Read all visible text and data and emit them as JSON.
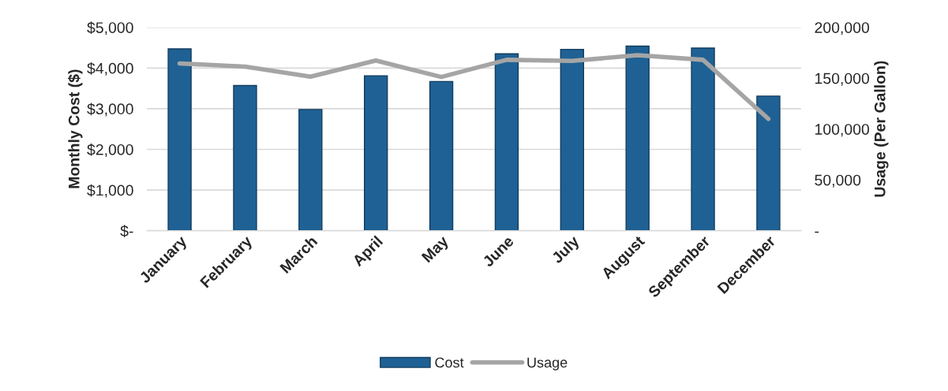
{
  "chart_data": {
    "type": "bar",
    "ylabel": "Monthly Cost ($)",
    "y2label": "Usage (Per Gallon)",
    "categories": [
      "January",
      "February",
      "March",
      "April",
      "May",
      "June",
      "July",
      "August",
      "September",
      "December"
    ],
    "series": [
      {
        "name": "Cost",
        "color": "#1f6194",
        "values": [
          4470,
          3570,
          2980,
          3810,
          3670,
          4350,
          4460,
          4540,
          4490,
          3310
        ]
      },
      {
        "name": "Usage",
        "type": "line",
        "axis": "y2",
        "color": "#a5a5a5",
        "values": [
          164500,
          161400,
          151500,
          167400,
          151200,
          168100,
          167000,
          172600,
          168100,
          110000
        ]
      }
    ],
    "ylim": [
      0,
      5000
    ],
    "yticks": [
      {
        "value": 0,
        "label": "$-"
      },
      {
        "value": 1000,
        "label": "$1,000"
      },
      {
        "value": 2000,
        "label": "$2,000"
      },
      {
        "value": 3000,
        "label": "$3,000"
      },
      {
        "value": 4000,
        "label": "$4,000"
      },
      {
        "value": 5000,
        "label": "$5,000"
      }
    ],
    "y2lim": [
      0,
      200000
    ],
    "y2ticks": [
      {
        "value": 0,
        "label": "-"
      },
      {
        "value": 50000,
        "label": "50,000"
      },
      {
        "value": 100000,
        "label": "100,000"
      },
      {
        "value": 150000,
        "label": "150,000"
      },
      {
        "value": 200000,
        "label": "200,000"
      }
    ],
    "grid": "y",
    "legend": "bottom",
    "marker": "none",
    "line_style": "solid"
  }
}
